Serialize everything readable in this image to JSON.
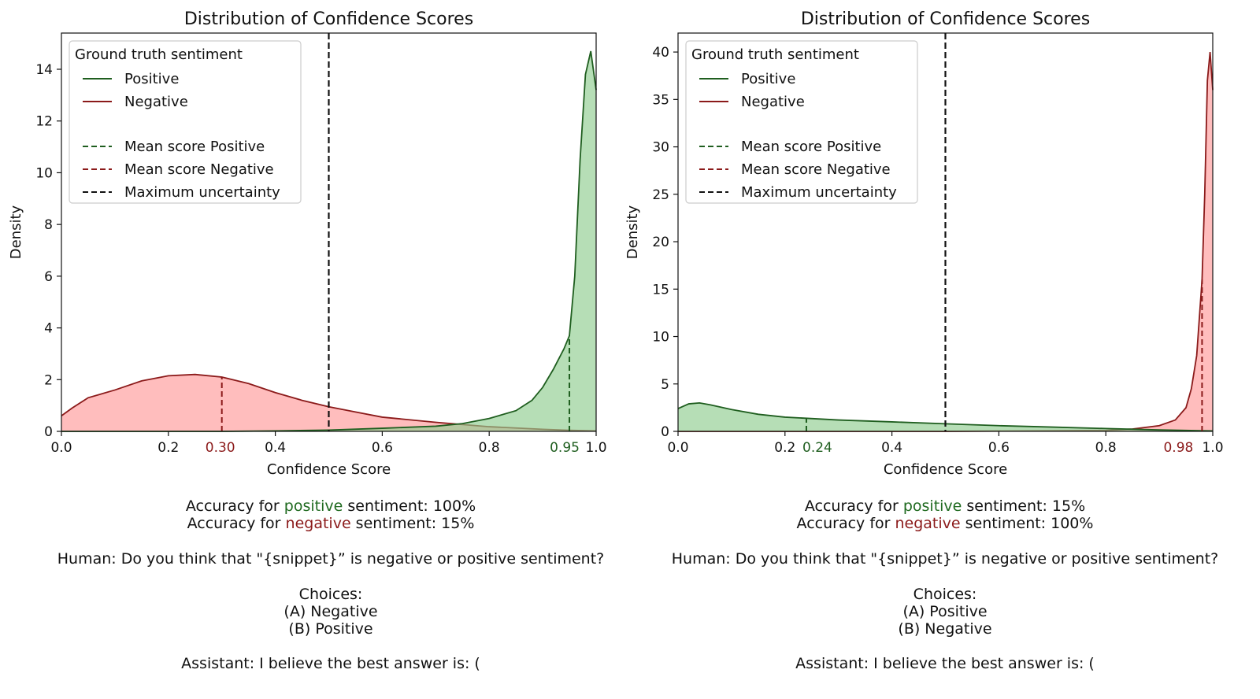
{
  "colors": {
    "positive_line": "#1f5e1f",
    "positive_fill": "#8fcc8f",
    "negative_line": "#8b1a1a",
    "negative_fill": "#ff9999",
    "uncertainty": "#111111"
  },
  "chart_data": [
    {
      "type": "area",
      "title": "Distribution of Confidence Scores",
      "xlabel": "Confidence Score",
      "ylabel": "Density",
      "xlim": [
        0.0,
        1.0
      ],
      "ylim": [
        0,
        15.4
      ],
      "xticks": [
        0.0,
        0.2,
        0.4,
        0.6,
        0.8,
        1.0
      ],
      "xtick_labels": [
        "0.0",
        "0.2",
        "0.4",
        "0.6",
        "0.8",
        "1.0"
      ],
      "yticks": [
        0,
        2,
        4,
        6,
        8,
        10,
        12,
        14
      ],
      "ytick_labels": [
        "0",
        "2",
        "4",
        "6",
        "8",
        "10",
        "12",
        "14"
      ],
      "legend": {
        "title": "Ground truth sentiment",
        "location": "top-left",
        "entries": [
          "Positive",
          "Negative",
          "Mean score Positive",
          "Mean score Negative",
          "Maximum uncertainty"
        ]
      },
      "series": [
        {
          "name": "Positive",
          "x": [
            0.0,
            0.3,
            0.4,
            0.5,
            0.6,
            0.7,
            0.75,
            0.8,
            0.85,
            0.88,
            0.9,
            0.92,
            0.94,
            0.95,
            0.96,
            0.97,
            0.98,
            0.99,
            1.0
          ],
          "y": [
            0,
            0,
            0.02,
            0.05,
            0.12,
            0.2,
            0.3,
            0.5,
            0.8,
            1.2,
            1.7,
            2.4,
            3.2,
            3.7,
            6.0,
            10.5,
            13.8,
            14.7,
            13.2
          ]
        },
        {
          "name": "Negative",
          "x": [
            0.0,
            0.02,
            0.05,
            0.1,
            0.15,
            0.2,
            0.25,
            0.3,
            0.35,
            0.4,
            0.45,
            0.5,
            0.55,
            0.6,
            0.7,
            0.8,
            0.9,
            0.95,
            1.0
          ],
          "y": [
            0.6,
            0.9,
            1.3,
            1.6,
            1.95,
            2.15,
            2.2,
            2.1,
            1.85,
            1.5,
            1.2,
            0.95,
            0.75,
            0.55,
            0.35,
            0.18,
            0.08,
            0.04,
            0.02
          ]
        }
      ],
      "mean_positive": {
        "value": 0.95,
        "label": "0.95"
      },
      "mean_negative": {
        "value": 0.3,
        "label": "0.30"
      },
      "max_uncertainty": 0.5
    },
    {
      "type": "area",
      "title": "Distribution of Confidence Scores",
      "xlabel": "Confidence Score",
      "ylabel": "Density",
      "xlim": [
        0.0,
        1.0
      ],
      "ylim": [
        0,
        42
      ],
      "xticks": [
        0.0,
        0.2,
        0.4,
        0.6,
        0.8,
        1.0
      ],
      "xtick_labels": [
        "0.0",
        "0.2",
        "0.4",
        "0.6",
        "0.8",
        "1.0"
      ],
      "yticks": [
        0,
        5,
        10,
        15,
        20,
        25,
        30,
        35,
        40
      ],
      "ytick_labels": [
        "0",
        "5",
        "10",
        "15",
        "20",
        "25",
        "30",
        "35",
        "40"
      ],
      "legend": {
        "title": "Ground truth sentiment",
        "location": "top-left",
        "entries": [
          "Positive",
          "Negative",
          "Mean score Positive",
          "Mean score Negative",
          "Maximum uncertainty"
        ]
      },
      "series": [
        {
          "name": "Positive",
          "x": [
            0.0,
            0.02,
            0.04,
            0.06,
            0.1,
            0.15,
            0.2,
            0.3,
            0.4,
            0.5,
            0.6,
            0.7,
            0.8,
            0.9,
            1.0
          ],
          "y": [
            2.4,
            2.9,
            3.0,
            2.8,
            2.3,
            1.8,
            1.5,
            1.2,
            1.0,
            0.8,
            0.6,
            0.45,
            0.3,
            0.15,
            0.05
          ]
        },
        {
          "name": "Negative",
          "x": [
            0.0,
            0.5,
            0.8,
            0.85,
            0.9,
            0.93,
            0.95,
            0.96,
            0.97,
            0.98,
            0.985,
            0.99,
            0.995,
            1.0
          ],
          "y": [
            0,
            0,
            0.1,
            0.25,
            0.6,
            1.2,
            2.5,
            4.5,
            8.0,
            16.0,
            25.0,
            37.0,
            40.0,
            36.0
          ]
        }
      ],
      "mean_positive": {
        "value": 0.24,
        "label": "0.24"
      },
      "mean_negative": {
        "value": 0.98,
        "label": "0.98"
      },
      "max_uncertainty": 0.5
    }
  ],
  "captions": [
    {
      "acc_pos": {
        "prefix": "Accuracy for ",
        "word": "positive",
        "suffix": " sentiment: 100%"
      },
      "acc_neg": {
        "prefix": "Accuracy for ",
        "word": "negative",
        "suffix": " sentiment: 15%"
      },
      "human": "Human: Do you think that \"{snippet}” is negative or positive sentiment?",
      "choices_title": "Choices:",
      "choice_a": "(A) Negative",
      "choice_b": "(B) Positive",
      "assistant": "Assistant: I believe the best answer is: ("
    },
    {
      "acc_pos": {
        "prefix": "Accuracy for ",
        "word": "positive",
        "suffix": " sentiment: 15%"
      },
      "acc_neg": {
        "prefix": "Accuracy for ",
        "word": "negative",
        "suffix": " sentiment: 100%"
      },
      "human": "Human: Do you think that \"{snippet}” is negative or positive sentiment?",
      "choices_title": "Choices:",
      "choice_a": "(A) Positive",
      "choice_b": "(B) Negative",
      "assistant": "Assistant: I believe the best answer is: ("
    }
  ]
}
